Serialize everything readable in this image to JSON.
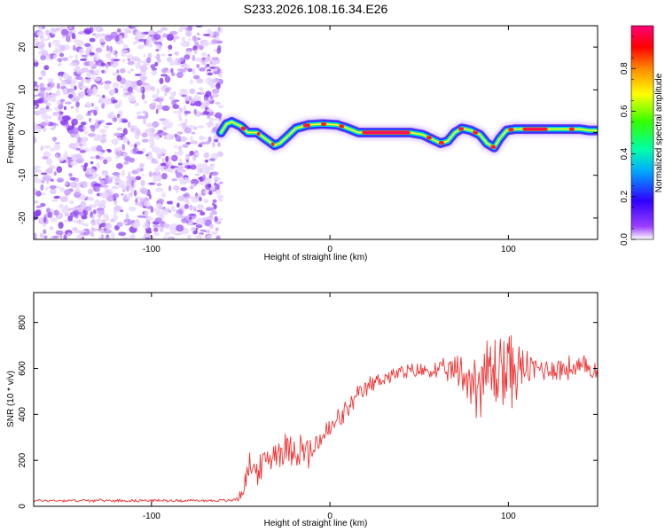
{
  "title": "S233.2026.108.16.34.E26",
  "chart_data": [
    {
      "type": "heatmap",
      "xlabel": "Height of straight line (km)",
      "ylabel": "Frequency (Hz)",
      "xlim": [
        -166,
        150
      ],
      "ylim": [
        -25,
        25
      ],
      "xticks": [
        -100,
        0,
        100
      ],
      "xtick_labels": [
        "-100",
        "0",
        "100"
      ],
      "yticks": [
        -20,
        -10,
        0,
        10,
        20
      ],
      "ytick_labels": [
        "-20",
        "-10",
        "0",
        "10",
        "20"
      ],
      "noise_region_x": [
        -166,
        -61
      ],
      "ridge": {
        "x": [
          -61,
          -58,
          -55,
          -50,
          -46,
          -41,
          -36,
          -31,
          -28,
          -24,
          -19,
          -12,
          -4,
          4,
          10,
          16,
          25,
          35,
          45,
          52,
          57,
          62,
          66,
          70,
          74,
          79,
          84,
          88,
          92,
          95,
          99,
          104,
          110,
          120,
          130,
          140,
          145,
          150
        ],
        "freq": [
          0,
          2,
          2.5,
          1.5,
          0,
          0,
          -1.5,
          -3,
          -2.5,
          -1,
          1,
          1.8,
          2,
          1.8,
          1,
          0,
          0,
          0,
          0,
          -0.5,
          -1.5,
          -2.5,
          -2,
          0,
          1,
          0.5,
          -0.5,
          -2.5,
          -3.5,
          -1.5,
          0.5,
          0.8,
          0.8,
          0.8,
          0.8,
          0.8,
          0.5,
          0.5
        ]
      },
      "colorbar": {
        "label": "Normalized spectral amplitude",
        "range": [
          0,
          1
        ],
        "ticks": [
          0.0,
          0.2,
          0.4,
          0.6,
          0.8
        ],
        "tick_labels": [
          "0.0",
          "0.2",
          "0.4",
          "0.6",
          "0.8"
        ],
        "colors": [
          "#ffffff",
          "#7a00ff",
          "#0000ff",
          "#00ffff",
          "#00ff00",
          "#ffff00",
          "#ff8000",
          "#ff0000",
          "#ff0077"
        ]
      }
    },
    {
      "type": "line",
      "xlabel": "Height of straight line (km)",
      "ylabel": "SNR (10 * v/v)",
      "xlim": [
        -166,
        150
      ],
      "ylim": [
        0,
        930
      ],
      "xticks": [
        -100,
        0,
        100
      ],
      "xtick_labels": [
        "-100",
        "0",
        "100"
      ],
      "yticks": [
        0,
        200,
        400,
        600,
        800
      ],
      "ytick_labels": [
        "0",
        "200",
        "400",
        "600",
        "800"
      ],
      "color": "#f03232",
      "series": [
        {
          "name": "SNR",
          "x": [
            -166,
            -150,
            -130,
            -110,
            -90,
            -70,
            -55,
            -51,
            -48,
            -45,
            -42,
            -40,
            -36,
            -30,
            -25,
            -20,
            -15,
            -10,
            -5,
            0,
            5,
            10,
            15,
            20,
            25,
            30,
            40,
            50,
            60,
            70,
            75,
            80,
            85,
            90,
            95,
            100,
            105,
            110,
            115,
            120,
            130,
            140,
            150
          ],
          "mean": [
            25,
            25,
            25,
            25,
            25,
            25,
            25,
            40,
            90,
            180,
            160,
            150,
            200,
            240,
            250,
            260,
            240,
            230,
            300,
            330,
            380,
            420,
            470,
            510,
            540,
            560,
            580,
            590,
            590,
            590,
            570,
            540,
            560,
            580,
            600,
            600,
            590,
            600,
            600,
            600,
            600,
            600,
            600
          ],
          "spread": [
            6,
            6,
            6,
            6,
            6,
            6,
            6,
            20,
            40,
            60,
            55,
            55,
            65,
            70,
            75,
            80,
            80,
            70,
            60,
            55,
            50,
            45,
            45,
            40,
            40,
            35,
            35,
            35,
            40,
            60,
            120,
            150,
            160,
            180,
            220,
            190,
            120,
            80,
            60,
            55,
            55,
            55,
            55
          ]
        }
      ]
    }
  ]
}
